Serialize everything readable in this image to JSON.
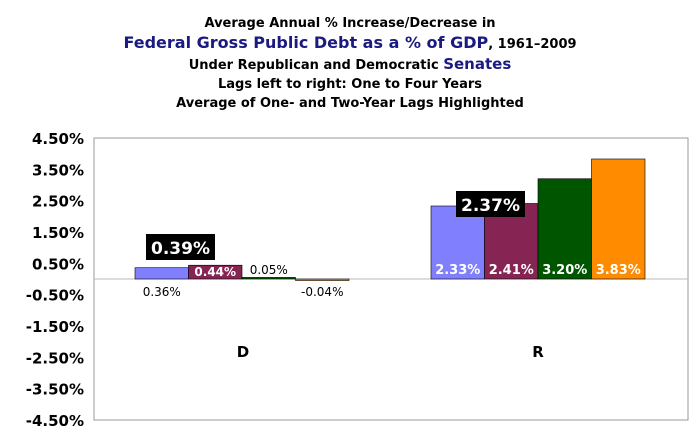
{
  "title": {
    "line1": "Average Annual % Increase/Decrease in",
    "line2_highlight": "Federal Gross Public Debt as a % of GDP",
    "line2_suffix": ", 1961–2009",
    "line3_prefix": "Under Republican and Democratic ",
    "line3_highlight": "Senates",
    "line4": "Lags left to right: One to Four Years",
    "line5": "Average of One- and Two-Year Lags Highlighted"
  },
  "chart_data": {
    "type": "bar",
    "categories": [
      "D",
      "R"
    ],
    "series": [
      {
        "values": [
          0.36,
          2.33
        ],
        "labels": [
          "0.36%",
          "2.33%"
        ],
        "color": "#8080ff"
      },
      {
        "values": [
          0.44,
          2.41
        ],
        "labels": [
          "0.44%",
          "2.41%"
        ],
        "color": "#862553"
      },
      {
        "values": [
          0.05,
          3.2
        ],
        "labels": [
          "0.05%",
          "3.20%"
        ],
        "color": "#005500"
      },
      {
        "values": [
          -0.04,
          3.83
        ],
        "labels": [
          "-0.04%",
          "3.83%"
        ],
        "color": "#ff8c00"
      }
    ],
    "highlights": [
      "0.39%",
      "2.37%"
    ],
    "yticks": [
      "4.50%",
      "3.50%",
      "2.50%",
      "1.50%",
      "0.50%",
      "-0.50%",
      "-1.50%",
      "-2.50%",
      "-3.50%",
      "-4.50%"
    ],
    "ytick_values": [
      4.5,
      3.5,
      2.5,
      1.5,
      0.5,
      -0.5,
      -1.5,
      -2.5,
      -3.5,
      -4.5
    ],
    "ylim": [
      -4.5,
      4.5
    ],
    "grid": false,
    "legend": "none"
  }
}
